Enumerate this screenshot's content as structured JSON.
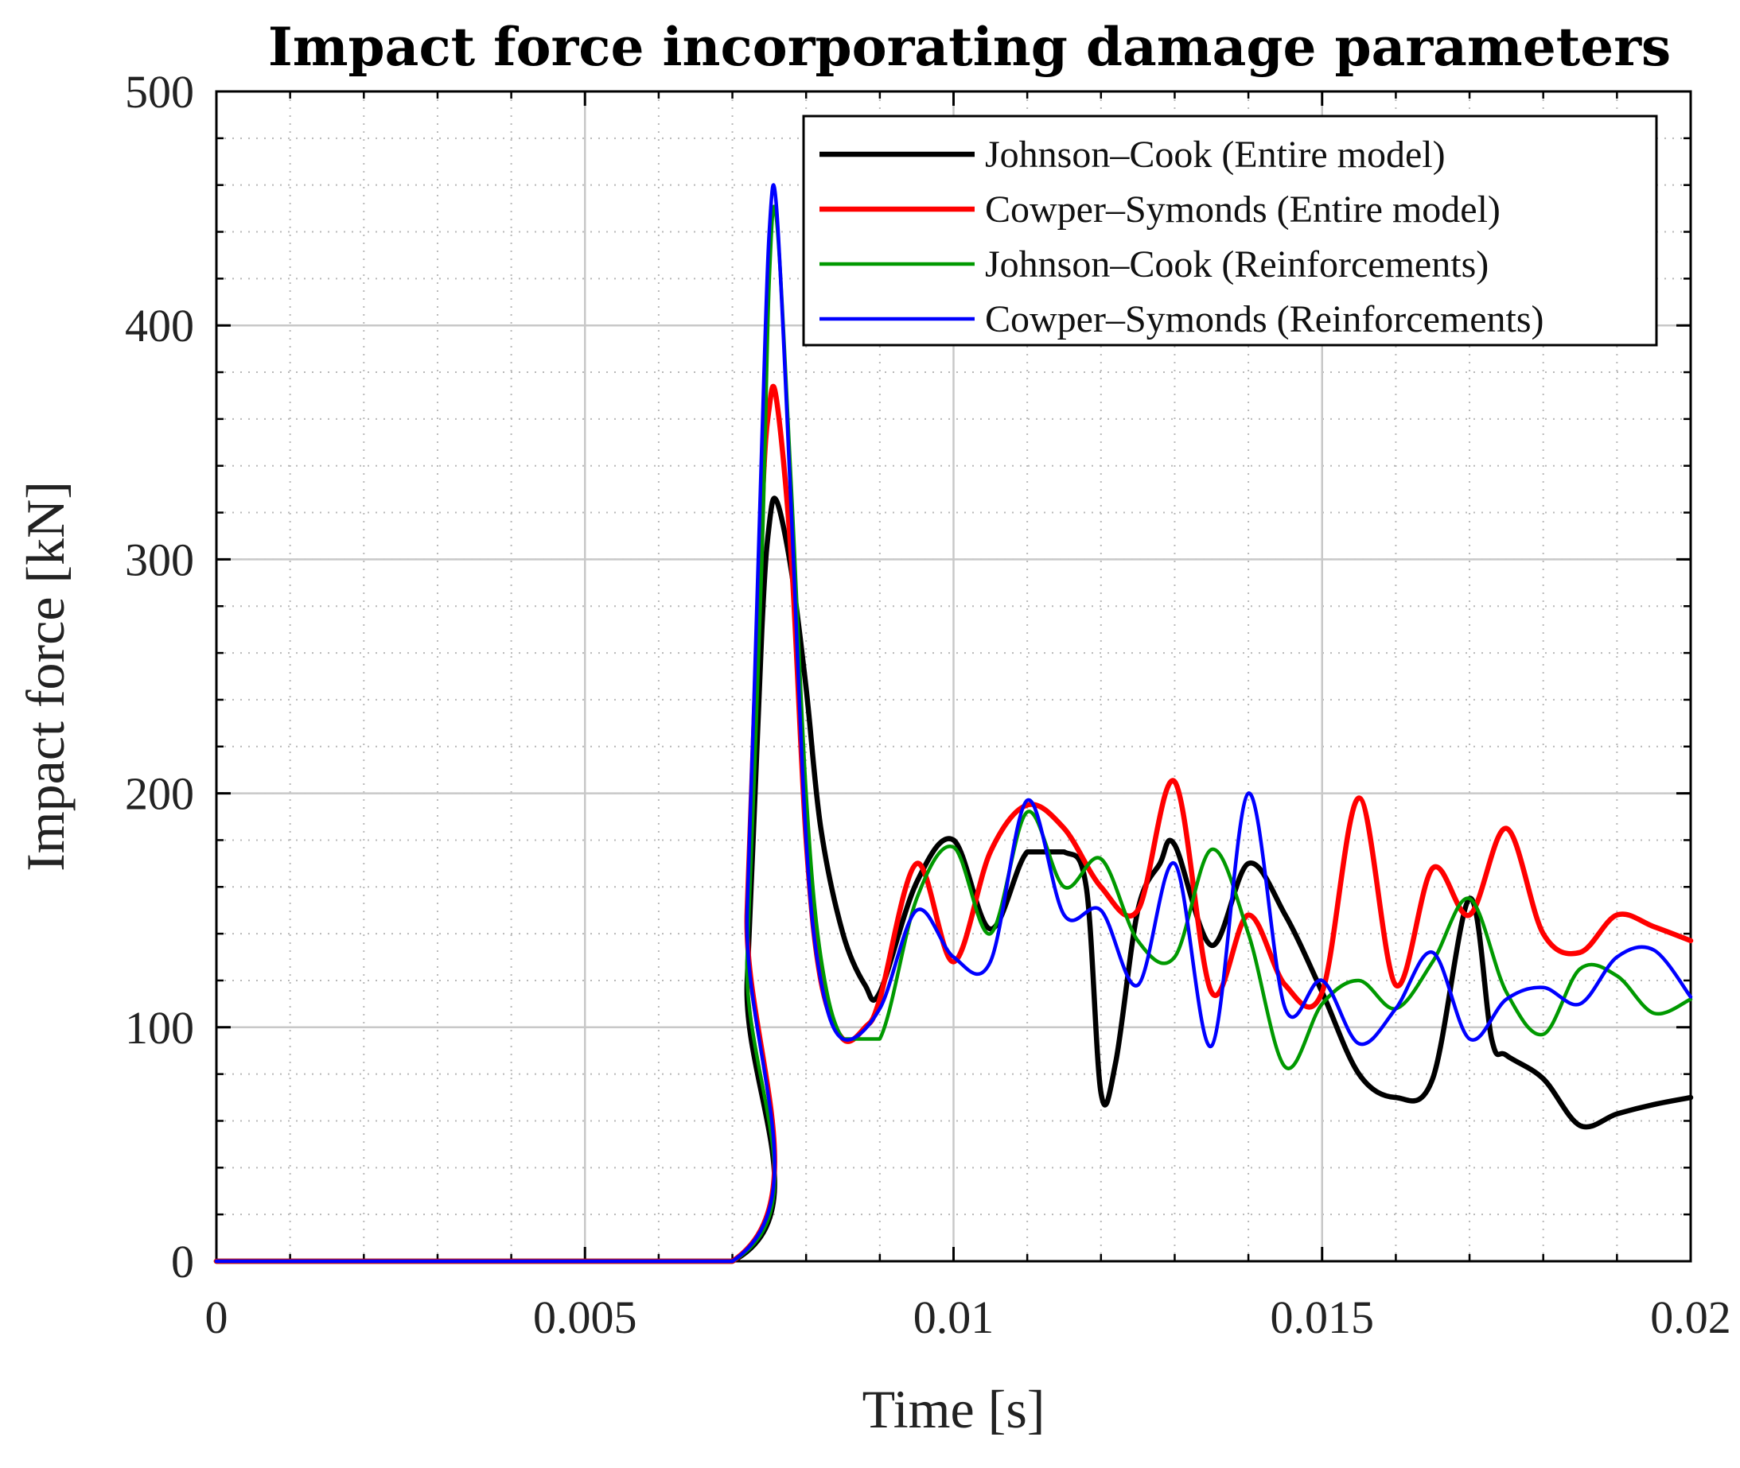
{
  "chart_data": {
    "type": "line",
    "title": "Impact force incorporating damage parameters",
    "xlabel": "Time [s]",
    "ylabel": "Impact force [kN]",
    "xlim": [
      0,
      0.02
    ],
    "ylim": [
      0,
      500
    ],
    "xticks": [
      0,
      0.005,
      0.01,
      0.015,
      0.02
    ],
    "xtick_labels": [
      "0",
      "0.005",
      "0.01",
      "0.015",
      "0.02"
    ],
    "yticks": [
      0,
      100,
      200,
      300,
      400,
      500
    ],
    "ytick_labels": [
      "0",
      "100",
      "200",
      "300",
      "400",
      "500"
    ],
    "grid": true,
    "legend_position": "top-right",
    "series": [
      {
        "name": "Johnson–Cook (Entire model)",
        "color": "#000000",
        "x": [
          0,
          0.007,
          0.0072,
          0.0074,
          0.0075,
          0.0076,
          0.0078,
          0.008,
          0.0082,
          0.0085,
          0.0088,
          0.009,
          0.0095,
          0.01,
          0.0105,
          0.011,
          0.0115,
          0.0118,
          0.012,
          0.0122,
          0.0125,
          0.0128,
          0.013,
          0.0135,
          0.014,
          0.0145,
          0.015,
          0.0155,
          0.016,
          0.0165,
          0.017,
          0.0173,
          0.0175,
          0.018,
          0.0185,
          0.019,
          0.0195,
          0.02
        ],
        "values": [
          0,
          0,
          120,
          270,
          315,
          325,
          295,
          245,
          185,
          140,
          118,
          115,
          162,
          180,
          142,
          175,
          175,
          160,
          72,
          85,
          150,
          170,
          178,
          135,
          170,
          148,
          115,
          80,
          70,
          78,
          155,
          95,
          88,
          78,
          58,
          63,
          67,
          70
        ]
      },
      {
        "name": "Cowper–Symonds (Entire model)",
        "color": "#ff0000",
        "x": [
          0,
          0.007,
          0.0072,
          0.0074,
          0.0075,
          0.0076,
          0.0078,
          0.008,
          0.0082,
          0.0085,
          0.0088,
          0.009,
          0.0095,
          0.01,
          0.0105,
          0.011,
          0.0115,
          0.012,
          0.0125,
          0.013,
          0.0135,
          0.014,
          0.0145,
          0.015,
          0.0155,
          0.016,
          0.0165,
          0.017,
          0.0175,
          0.018,
          0.0185,
          0.019,
          0.0195,
          0.02
        ],
        "values": [
          0,
          0,
          150,
          320,
          365,
          368,
          300,
          180,
          120,
          95,
          100,
          112,
          170,
          128,
          175,
          195,
          185,
          160,
          150,
          205,
          115,
          148,
          118,
          115,
          198,
          118,
          168,
          148,
          185,
          140,
          132,
          148,
          143,
          137
        ]
      },
      {
        "name": "Johnson–Cook (Reinforcements)",
        "color": "#009900",
        "x": [
          0,
          0.007,
          0.0072,
          0.0074,
          0.0075,
          0.0076,
          0.0078,
          0.008,
          0.0082,
          0.0085,
          0.009,
          0.0095,
          0.01,
          0.0105,
          0.011,
          0.0115,
          0.012,
          0.0125,
          0.013,
          0.0135,
          0.014,
          0.0145,
          0.015,
          0.0155,
          0.016,
          0.0165,
          0.017,
          0.0175,
          0.018,
          0.0185,
          0.019,
          0.0195,
          0.02
        ],
        "values": [
          0,
          0,
          130,
          300,
          420,
          445,
          330,
          200,
          130,
          95,
          95,
          155,
          177,
          140,
          192,
          160,
          172,
          137,
          130,
          176,
          140,
          83,
          110,
          120,
          108,
          128,
          155,
          115,
          97,
          125,
          122,
          106,
          112
        ]
      },
      {
        "name": "Cowper–Symonds (Reinforcements)",
        "color": "#0000ff",
        "x": [
          0,
          0.007,
          0.0072,
          0.0074,
          0.0075,
          0.0076,
          0.0078,
          0.008,
          0.0082,
          0.0085,
          0.009,
          0.0095,
          0.01,
          0.0105,
          0.011,
          0.0115,
          0.012,
          0.0125,
          0.013,
          0.0135,
          0.014,
          0.0145,
          0.015,
          0.0155,
          0.016,
          0.0165,
          0.017,
          0.0175,
          0.018,
          0.0185,
          0.019,
          0.0195,
          0.02
        ],
        "values": [
          0,
          0,
          150,
          350,
          440,
          450,
          320,
          180,
          120,
          95,
          108,
          150,
          130,
          128,
          197,
          148,
          150,
          118,
          170,
          92,
          200,
          108,
          120,
          93,
          108,
          132,
          95,
          112,
          117,
          110,
          130,
          133,
          113
        ]
      }
    ]
  }
}
